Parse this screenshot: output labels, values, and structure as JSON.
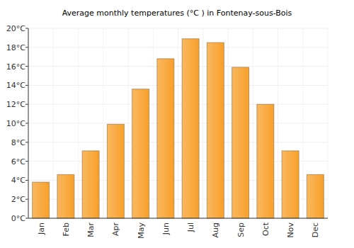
{
  "chart_data": {
    "type": "bar",
    "title": "Average monthly temperatures (°C ) in Fontenay-sous-Bois",
    "categories": [
      "Jan",
      "Feb",
      "Mar",
      "Apr",
      "May",
      "Jun",
      "Jul",
      "Aug",
      "Sep",
      "Oct",
      "Nov",
      "Dec"
    ],
    "values": [
      3.8,
      4.6,
      7.1,
      9.9,
      13.6,
      16.8,
      18.9,
      18.5,
      15.9,
      12.0,
      7.1,
      4.6
    ],
    "color": "#f8a02a",
    "ylim": [
      0,
      20
    ],
    "yticks": [
      {
        "value": 0,
        "label": "0°C"
      },
      {
        "value": 2,
        "label": "2°C"
      },
      {
        "value": 4,
        "label": "4°C"
      },
      {
        "value": 6,
        "label": "6°C"
      },
      {
        "value": 8,
        "label": "8°C"
      },
      {
        "value": 10,
        "label": "10°C"
      },
      {
        "value": 12,
        "label": "12°C"
      },
      {
        "value": 14,
        "label": "14°C"
      },
      {
        "value": 16,
        "label": "16°C"
      },
      {
        "value": 18,
        "label": "18°C"
      },
      {
        "value": 20,
        "label": "20°C"
      }
    ],
    "grid": true
  }
}
